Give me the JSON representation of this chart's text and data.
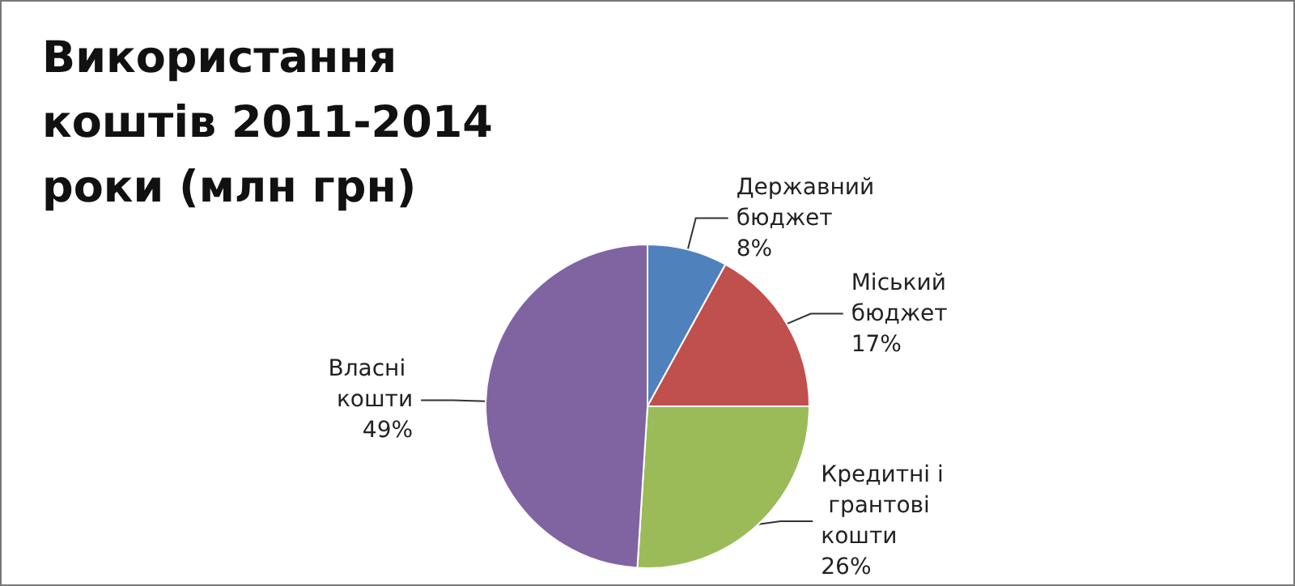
{
  "chart_data": {
    "type": "pie",
    "title": "Використання коштів 2011-2014 роки (млн грн)",
    "categories": [
      "Державний бюджет",
      "Міський бюджет",
      "Кредитні і грантові кошти",
      "Власні кошти"
    ],
    "values": [
      8,
      17,
      26,
      49
    ],
    "value_labels": [
      "8%",
      "17%",
      "26%",
      "49%"
    ],
    "colors": [
      "#4f81bd",
      "#c0504d",
      "#9bbb59",
      "#8064a2"
    ],
    "legend": false
  }
}
